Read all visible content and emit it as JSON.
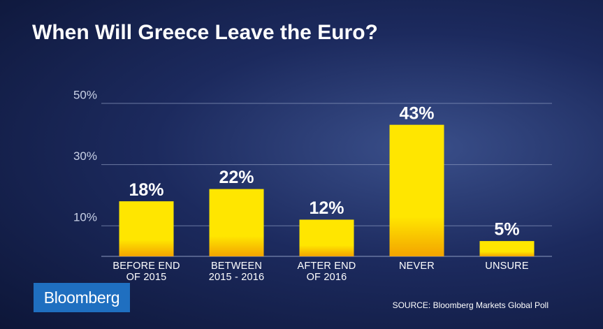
{
  "chart_data": {
    "type": "bar",
    "title": "When Will Greece Leave the Euro?",
    "categories": [
      "BEFORE END\nOF 2015",
      "BETWEEN\n2015 - 2016",
      "AFTER END\nOF 2016",
      "NEVER",
      "UNSURE"
    ],
    "values": [
      18,
      22,
      12,
      43,
      5
    ],
    "value_labels": [
      "18%",
      "22%",
      "12%",
      "43%",
      "5%"
    ],
    "color": "#ffe600",
    "ylim": [
      0,
      50
    ],
    "yticks": [
      {
        "value": 10,
        "label": "10%"
      },
      {
        "value": 30,
        "label": "30%"
      },
      {
        "value": 50,
        "label": "50%"
      }
    ],
    "grid": true,
    "source": "SOURCE: Bloomberg Markets Global Poll",
    "brand": "Bloomberg"
  }
}
